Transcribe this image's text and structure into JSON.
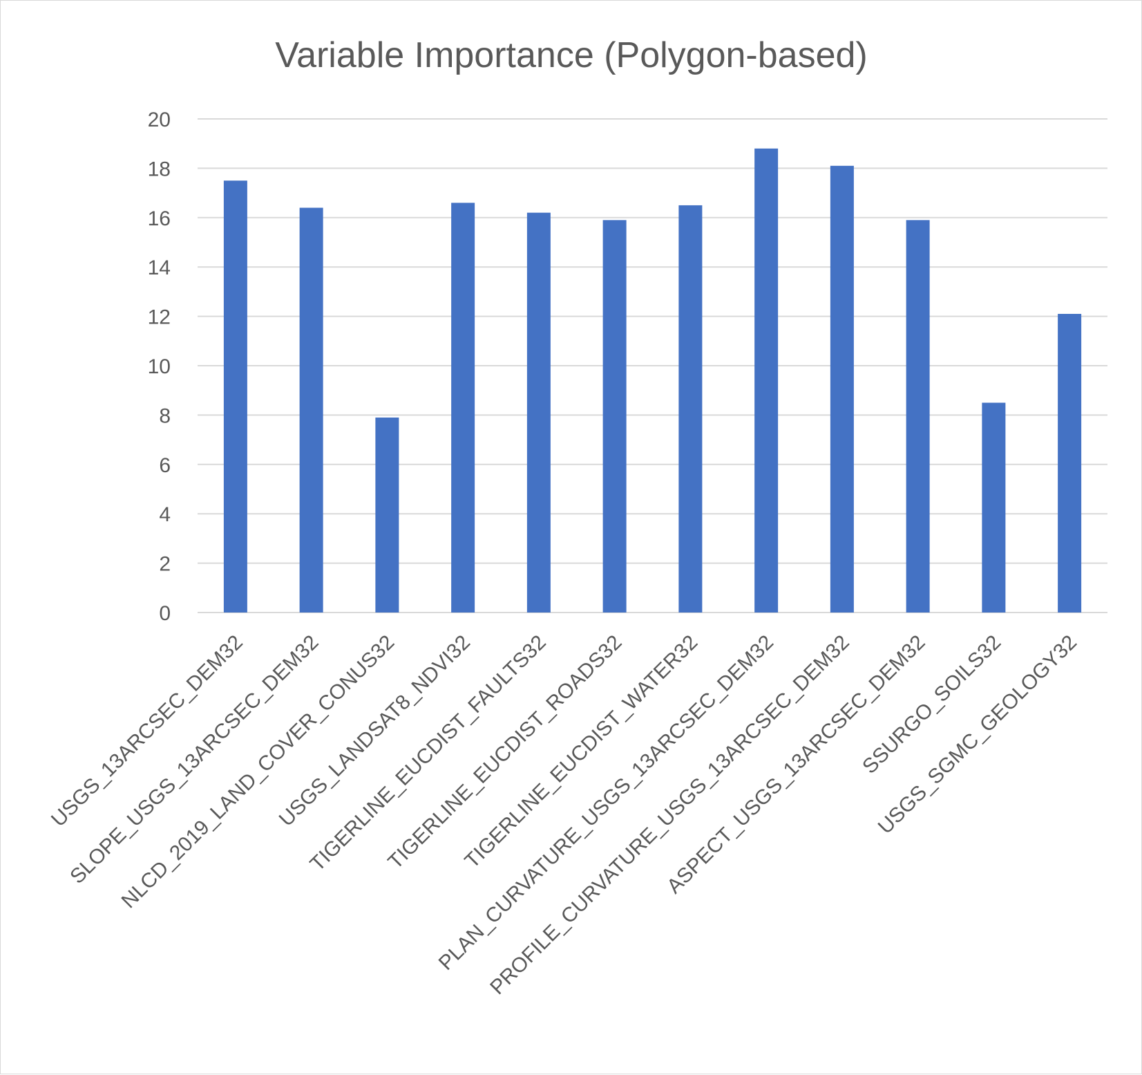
{
  "chart_data": {
    "type": "bar",
    "title": "Variable Importance (Polygon-based)",
    "xlabel": "",
    "ylabel": "",
    "ylim": [
      0,
      20
    ],
    "yticks": [
      0,
      2,
      4,
      6,
      8,
      10,
      12,
      14,
      16,
      18,
      20
    ],
    "grid": true,
    "legend": "none",
    "bar_color": "#4472c4",
    "categories": [
      "USGS_13ARCSEC_DEM32",
      "SLOPE_USGS_13ARCSEC_DEM32",
      "NLCD_2019_LAND_COVER_CONUS32",
      "USGS_LANDSAT8_NDVI32",
      "TIGERLINE_EUCDIST_FAULTS32",
      "TIGERLINE_EUCDIST_ROADS32",
      "TIGERLINE_EUCDIST_WATER32",
      "PLAN_CURVATURE_USGS_13ARCSEC_DEM32",
      "PROFILE_CURVATURE_USGS_13ARCSEC_DEM32",
      "ASPECT_USGS_13ARCSEC_DEM32",
      "SSURGO_SOILS32",
      "USGS_SGMC_GEOLOGY32"
    ],
    "values": [
      17.5,
      16.4,
      7.9,
      16.6,
      16.2,
      15.9,
      16.5,
      18.8,
      18.1,
      15.9,
      8.5,
      12.1
    ]
  }
}
